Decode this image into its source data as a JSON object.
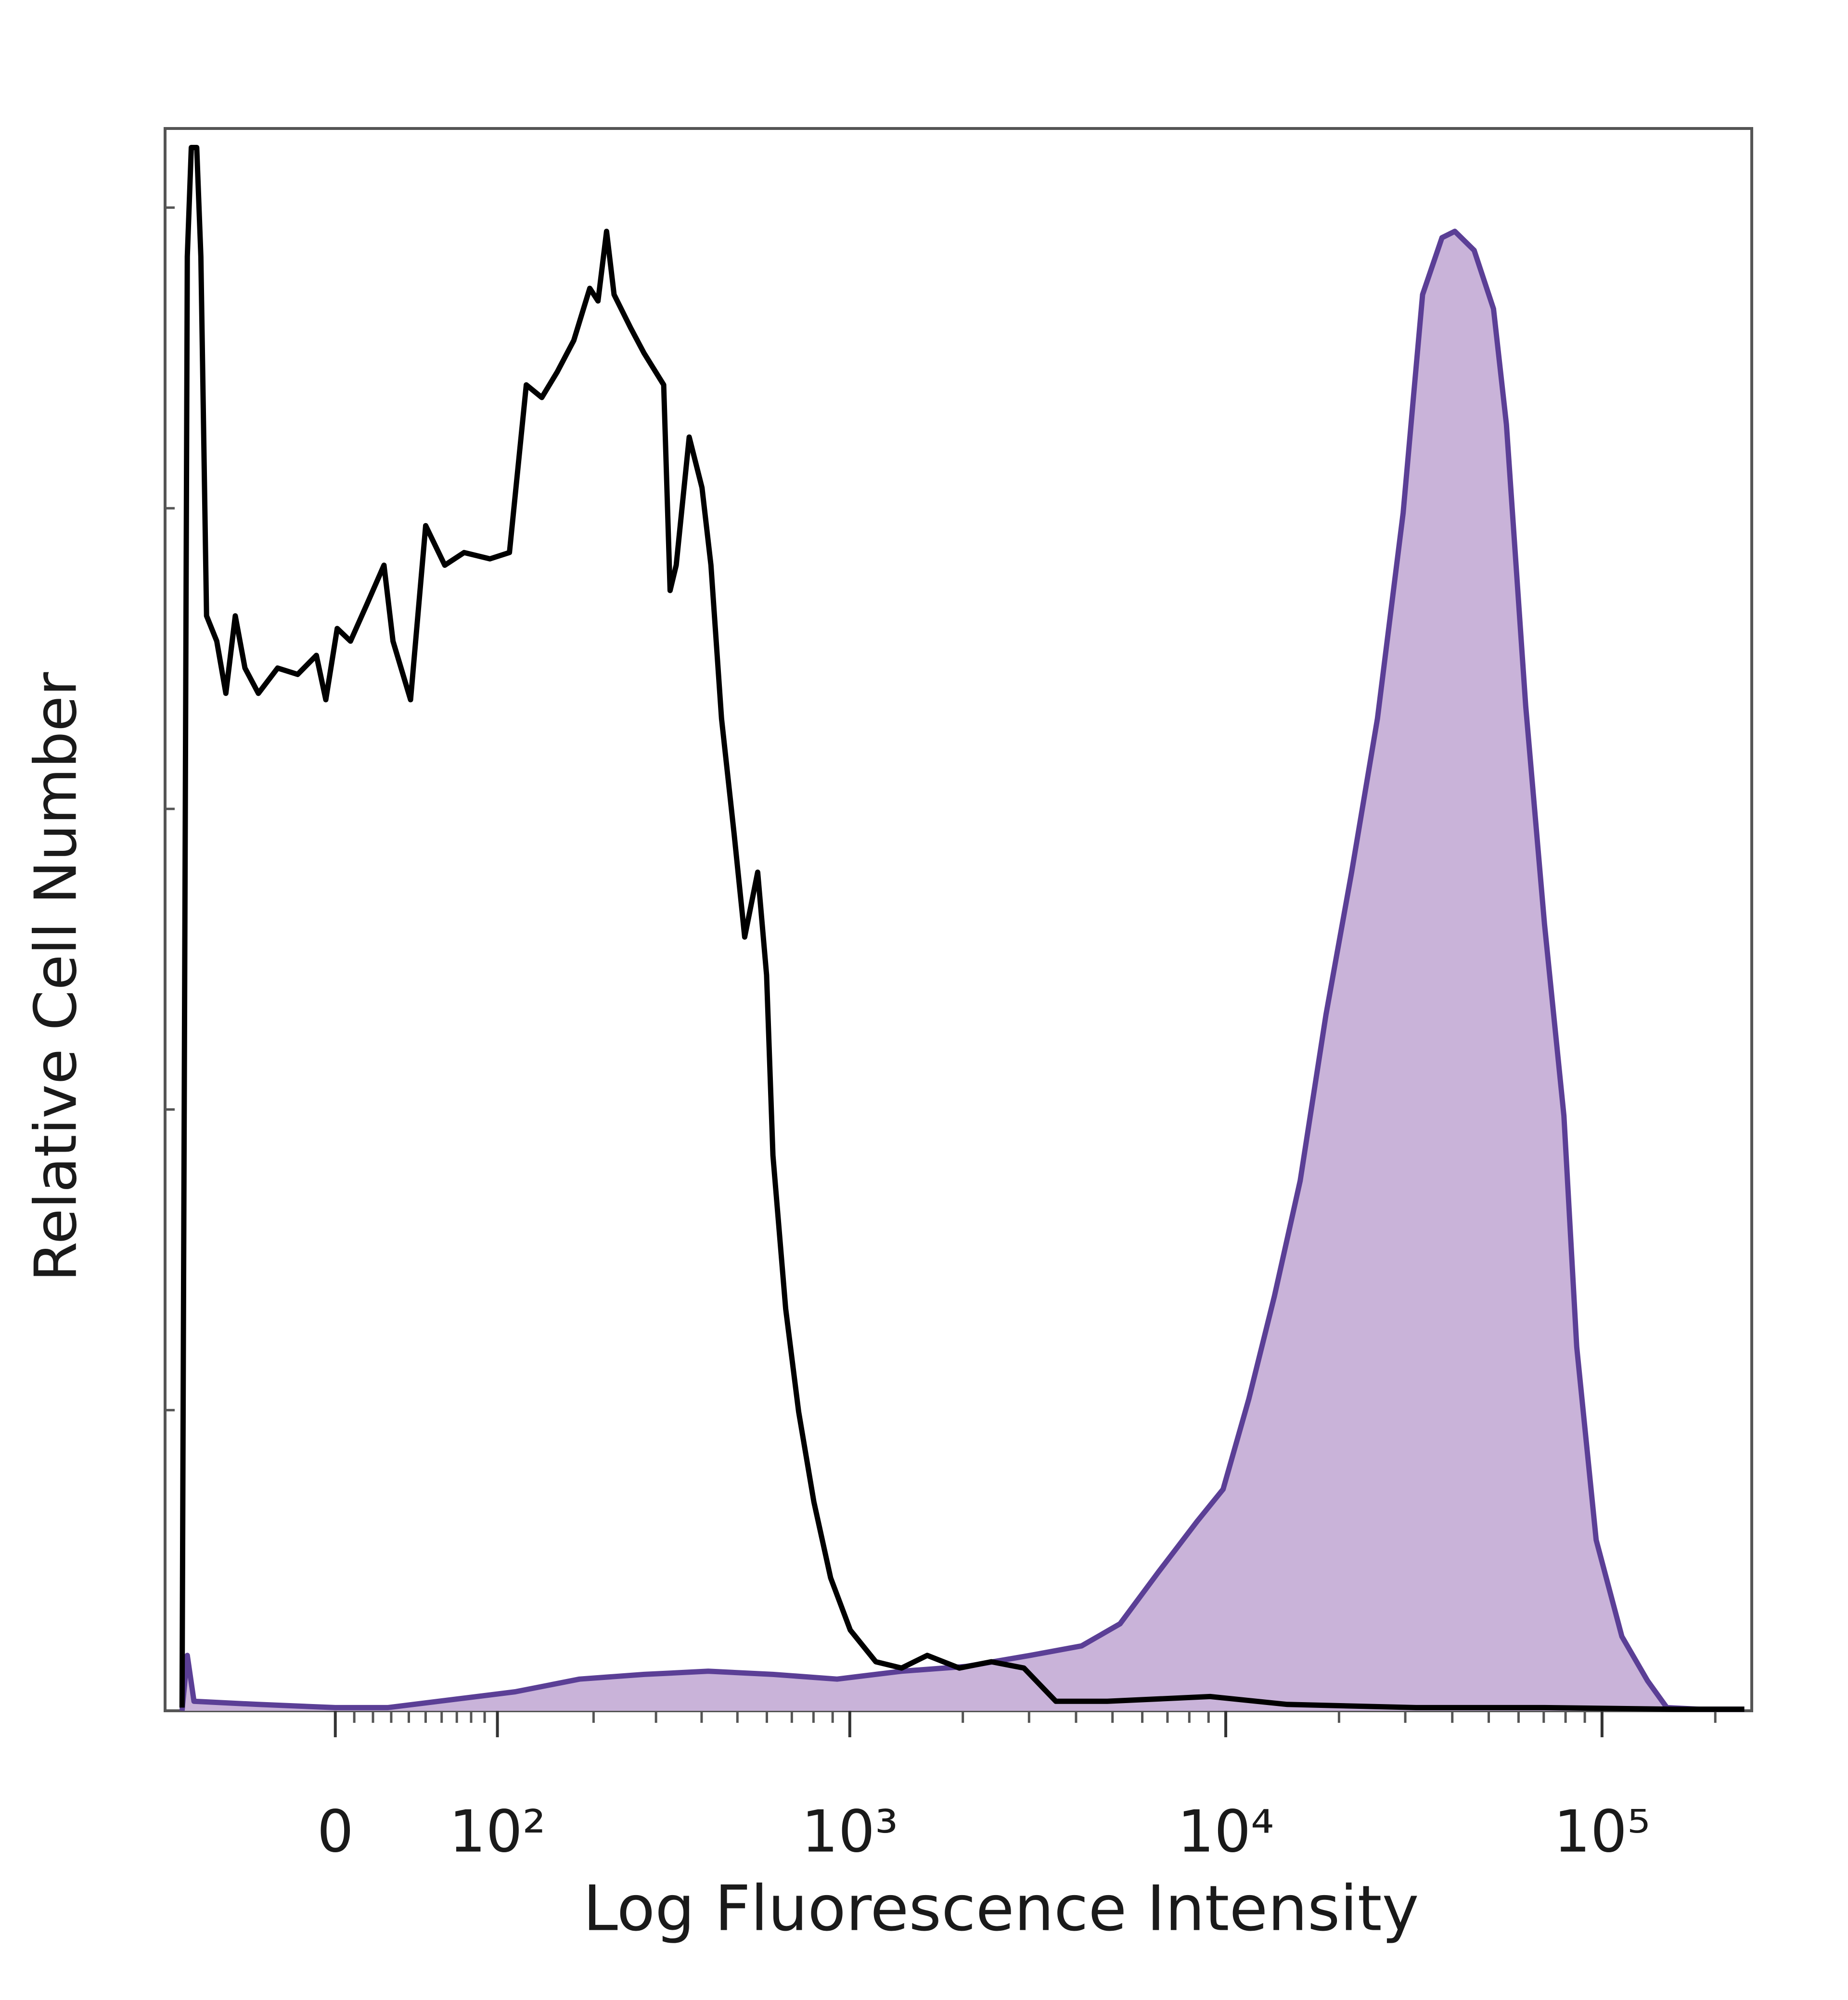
{
  "chart_data": {
    "type": "line",
    "xlabel": "Log Fluorescence Intensity",
    "ylabel": "Relative Cell Number",
    "xscale": "asinh",
    "xlim": [
      -95,
      250000
    ],
    "ylim": [
      0,
      100
    ],
    "xticks": [
      0,
      {
        "value": 100,
        "label": "10²"
      },
      {
        "value": 1000,
        "label": "10³"
      },
      {
        "value": 10000,
        "label": "10⁴"
      },
      {
        "value": 100000,
        "label": "10⁵"
      }
    ],
    "series": [
      {
        "color": "#5b3f96",
        "fill": "#c9b3d9",
        "x": [
          -93,
          -89,
          -84,
          -42,
          0,
          28,
          115,
          182,
          278,
          417,
          623,
          925,
          1374,
          2038,
          3019,
          4137,
          5237,
          6639,
          8411,
          9838,
          11515,
          13468,
          15772,
          18464,
          21603,
          25301,
          29610,
          33351,
          37548,
          40626,
          45735,
          51480,
          55702,
          62694,
          70348,
          79206,
          85656,
          96492,
          112918,
          132096,
          148694,
          181116,
          238908
        ],
        "values": [
          0,
          3.5,
          0.6,
          0.4,
          0.2,
          0.2,
          1.2,
          2.0,
          2.3,
          2.5,
          2.3,
          2.0,
          2.5,
          2.8,
          3.5,
          4.1,
          5.5,
          8.8,
          12.0,
          14.0,
          19.7,
          26.2,
          33.5,
          44.0,
          53.0,
          62.7,
          75.7,
          89.5,
          93.1,
          93.5,
          92.3,
          88.6,
          81.3,
          63.5,
          49.7,
          37.6,
          23.0,
          10.8,
          4.7,
          1.9,
          0.2,
          0.1,
          0.1
        ]
      },
      {
        "color": "#000000",
        "x": [
          -93,
          -89,
          -86,
          -82,
          -79,
          -75,
          -68,
          -62,
          -56,
          -50,
          -42,
          -31,
          -20,
          -10,
          -5,
          1,
          8,
          17,
          26,
          31,
          41,
          50,
          62,
          75,
          94,
          110,
          125,
          140,
          156,
          175,
          195,
          206,
          218,
          229,
          255,
          278,
          315,
          328,
          341,
          370,
          401,
          424,
          453,
          490,
          523,
          567,
          599,
          623,
          674,
          730,
          802,
          889,
          1003,
          1173,
          1374,
          1608,
          1958,
          2382,
          2907,
          3535,
          4842,
          9090,
          14568,
          32044,
          70348,
          154628,
          238908
        ],
        "values": [
          0.2,
          91.9,
          98.8,
          98.8,
          91.9,
          69.2,
          67.6,
          64.3,
          69.2,
          65.9,
          64.3,
          65.9,
          65.5,
          66.7,
          63.9,
          68.4,
          67.6,
          70.0,
          72.4,
          67.6,
          63.9,
          74.9,
          72.4,
          73.2,
          72.8,
          73.2,
          83.8,
          83.0,
          84.6,
          86.6,
          89.9,
          89.1,
          93.5,
          89.5,
          87.4,
          85.8,
          83.8,
          70.8,
          72.4,
          80.5,
          77.3,
          72.4,
          62.7,
          55.4,
          48.9,
          53.0,
          46.5,
          35.1,
          25.4,
          18.9,
          13.2,
          8.4,
          5.1,
          3.1,
          2.7,
          3.5,
          2.7,
          3.1,
          2.7,
          0.6,
          0.6,
          0.9,
          0.4,
          0.2,
          0.2,
          0.1,
          0.1
        ]
      }
    ]
  }
}
